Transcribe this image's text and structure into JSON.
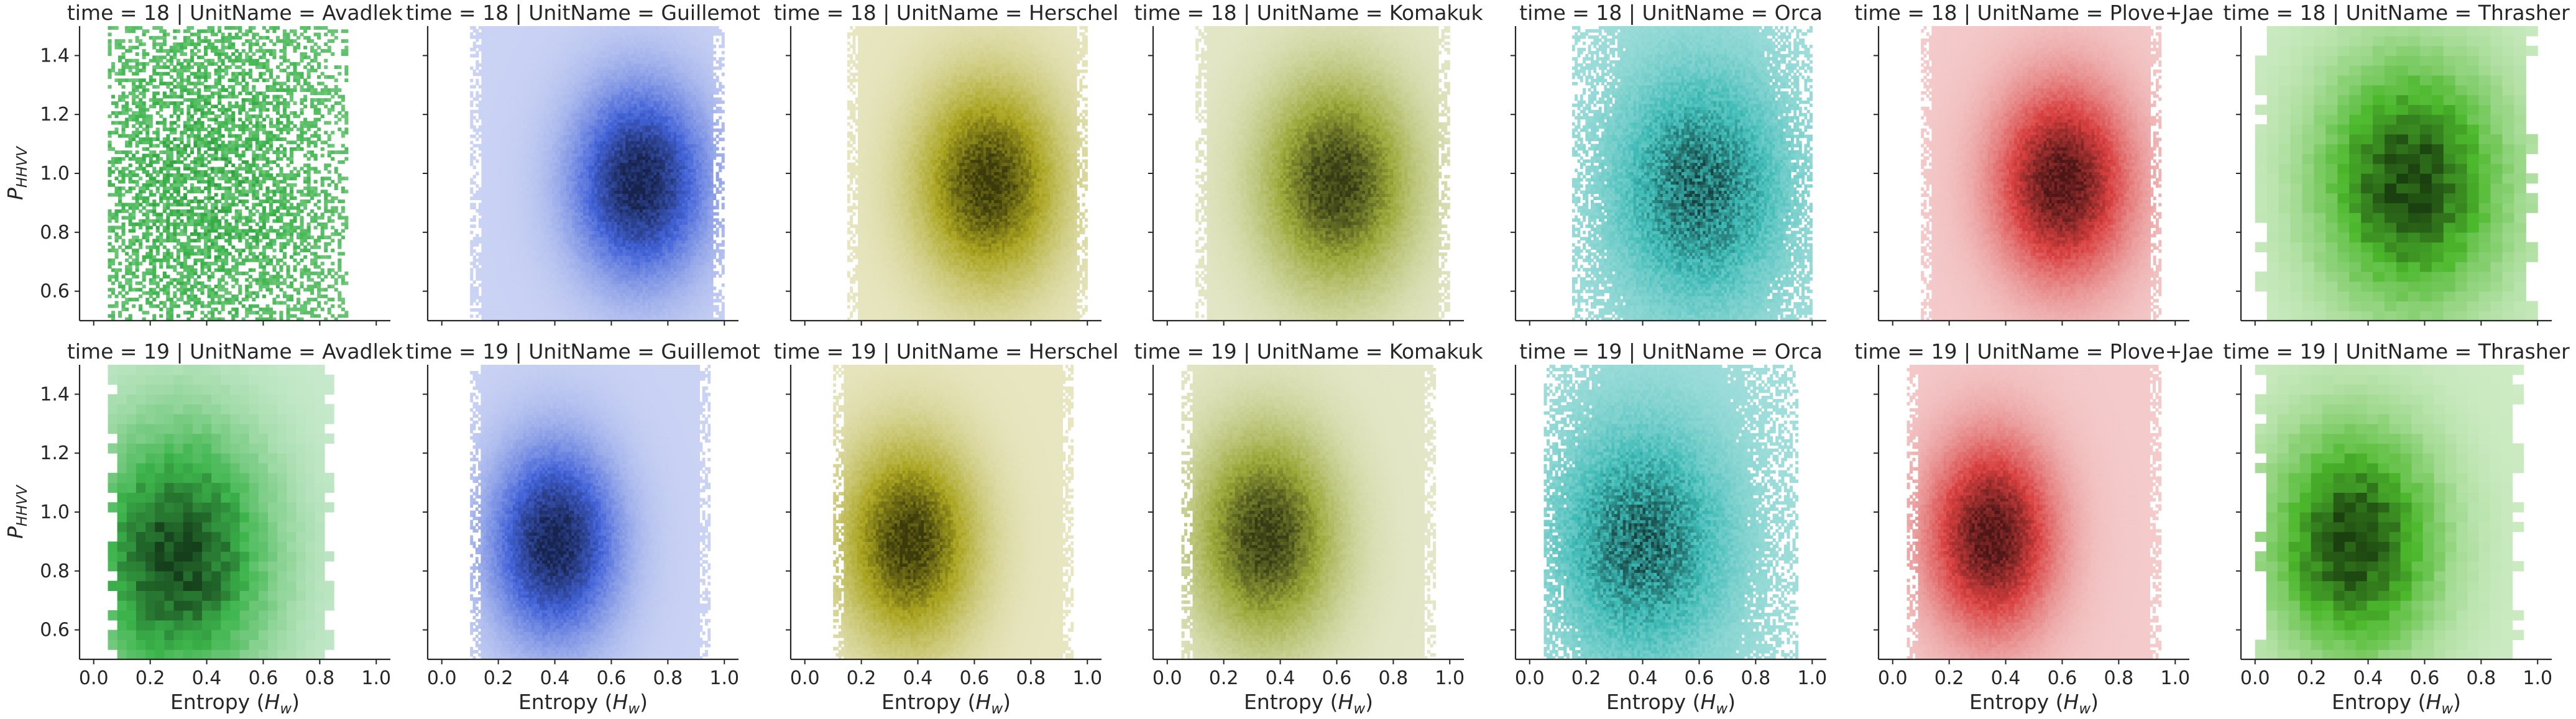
{
  "chart_data": {
    "type": "heatmap",
    "description_kind": "faceted 2D histograms",
    "x_axis": {
      "label": "Entropy (H_w)",
      "label_text": "Entropy (",
      "label_var": "H",
      "label_sub": "w",
      "label_close": ")",
      "lim": [
        -0.05,
        1.05
      ],
      "ticks": [
        "0.0",
        "0.2",
        "0.4",
        "0.6",
        "0.8",
        "1.0"
      ]
    },
    "y_axis": {
      "label": "P_HHVV",
      "label_var": "P",
      "label_sub": "HHVV",
      "lim": [
        0.5,
        1.5
      ],
      "ticks": [
        "0.6",
        "0.8",
        "1.0",
        "1.2",
        "1.4"
      ]
    },
    "rows": [
      {
        "time": 18,
        "title_prefix": "time = 18"
      },
      {
        "time": 19,
        "title_prefix": "time = 19"
      }
    ],
    "columns": [
      {
        "unit": "Avadlek",
        "color": "#3cb44b"
      },
      {
        "unit": "Guillemot",
        "color": "#4363d8"
      },
      {
        "unit": "Herschel",
        "color": "#aaa520"
      },
      {
        "unit": "Komakuk",
        "color": "#9aa838"
      },
      {
        "unit": "Orca",
        "color": "#3cbab5"
      },
      {
        "unit": "Plove+Jae",
        "color": "#d94040"
      },
      {
        "unit": "Thrasher",
        "color": "#4cb82c"
      }
    ],
    "panels": [
      {
        "title": "time = 18 | UnitName = Avadlek",
        "x_range": [
          0.05,
          0.9
        ],
        "y_range": [
          0.5,
          1.5
        ],
        "center": [
          0.4,
          1.0
        ],
        "spread": [
          0.35,
          0.5
        ],
        "density": "sparse"
      },
      {
        "title": "time = 18 | UnitName = Guillemot",
        "x_range": [
          0.1,
          1.0
        ],
        "y_range": [
          0.5,
          1.5
        ],
        "center": [
          0.7,
          0.97
        ],
        "spread": [
          0.16,
          0.22
        ],
        "density": "dense"
      },
      {
        "title": "time = 18 | UnitName = Herschel",
        "x_range": [
          0.15,
          1.0
        ],
        "y_range": [
          0.5,
          1.5
        ],
        "center": [
          0.65,
          0.97
        ],
        "spread": [
          0.17,
          0.23
        ],
        "density": "dense"
      },
      {
        "title": "time = 18 | UnitName = Komakuk",
        "x_range": [
          0.1,
          1.0
        ],
        "y_range": [
          0.5,
          1.5
        ],
        "center": [
          0.6,
          0.97
        ],
        "spread": [
          0.18,
          0.24
        ],
        "density": "dense"
      },
      {
        "title": "time = 18 | UnitName = Orca",
        "x_range": [
          0.15,
          1.0
        ],
        "y_range": [
          0.5,
          1.5
        ],
        "center": [
          0.6,
          0.95
        ],
        "spread": [
          0.2,
          0.26
        ],
        "density": "medium"
      },
      {
        "title": "time = 18 | UnitName = Plove+Jae",
        "x_range": [
          0.1,
          0.95
        ],
        "y_range": [
          0.5,
          1.5
        ],
        "center": [
          0.6,
          0.97
        ],
        "spread": [
          0.16,
          0.22
        ],
        "density": "dense"
      },
      {
        "title": "time = 18 | UnitName = Thrasher",
        "x_range": [
          0.0,
          1.0
        ],
        "y_range": [
          0.5,
          1.5
        ],
        "center": [
          0.55,
          0.97
        ],
        "spread": [
          0.22,
          0.28
        ],
        "density": "blocky"
      },
      {
        "title": "time = 19 | UnitName = Avadlek",
        "x_range": [
          0.05,
          0.85
        ],
        "y_range": [
          0.5,
          1.5
        ],
        "center": [
          0.3,
          0.85
        ],
        "spread": [
          0.22,
          0.3
        ],
        "density": "blocky"
      },
      {
        "title": "time = 19 | UnitName = Guillemot",
        "x_range": [
          0.1,
          0.95
        ],
        "y_range": [
          0.5,
          1.5
        ],
        "center": [
          0.4,
          0.9
        ],
        "spread": [
          0.15,
          0.22
        ],
        "density": "dense"
      },
      {
        "title": "time = 19 | UnitName = Herschel",
        "x_range": [
          0.1,
          0.95
        ],
        "y_range": [
          0.5,
          1.5
        ],
        "center": [
          0.37,
          0.9
        ],
        "spread": [
          0.16,
          0.23
        ],
        "density": "dense"
      },
      {
        "title": "time = 19 | UnitName = Komakuk",
        "x_range": [
          0.05,
          0.95
        ],
        "y_range": [
          0.5,
          1.5
        ],
        "center": [
          0.35,
          0.92
        ],
        "spread": [
          0.17,
          0.24
        ],
        "density": "dense"
      },
      {
        "title": "time = 19 | UnitName = Orca",
        "x_range": [
          0.05,
          0.95
        ],
        "y_range": [
          0.5,
          1.5
        ],
        "center": [
          0.4,
          0.9
        ],
        "spread": [
          0.2,
          0.26
        ],
        "density": "medium"
      },
      {
        "title": "time = 19 | UnitName = Plove+Jae",
        "x_range": [
          0.05,
          0.95
        ],
        "y_range": [
          0.5,
          1.5
        ],
        "center": [
          0.35,
          0.92
        ],
        "spread": [
          0.15,
          0.22
        ],
        "density": "dense"
      },
      {
        "title": "time = 19 | UnitName = Thrasher",
        "x_range": [
          0.0,
          0.95
        ],
        "y_range": [
          0.5,
          1.5
        ],
        "center": [
          0.35,
          0.9
        ],
        "spread": [
          0.2,
          0.26
        ],
        "density": "blocky"
      }
    ]
  }
}
